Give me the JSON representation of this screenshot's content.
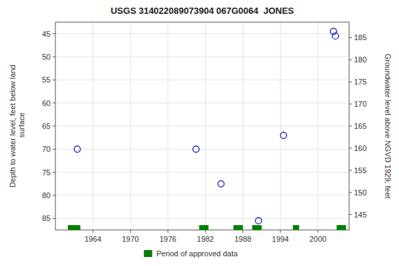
{
  "chart_data": {
    "type": "scatter",
    "title": "USGS 314022089073904 067G0064  JONES",
    "ylabel": "Depth to water level, feet below land\n surface",
    "y2label": "Groundwater level above NGVD 1929, feet",
    "grid": true,
    "legend": "bottom",
    "xlim": [
      1958,
      2005
    ],
    "xticks": [
      1964,
      1970,
      1976,
      1982,
      1988,
      1994,
      2000
    ],
    "ylim": [
      87.5,
      42.5
    ],
    "yticks": [
      45,
      50,
      55,
      60,
      65,
      70,
      75,
      80,
      85
    ],
    "y2lim": [
      141.5,
      188.5
    ],
    "y2ticks": [
      145,
      150,
      155,
      160,
      165,
      170,
      175,
      180,
      185
    ],
    "series": [
      {
        "type": "scatter",
        "marker": "open-circle",
        "color": "#0000cc",
        "x": [
          1961.5,
          1980.5,
          1984.5,
          1990.5,
          1994.5,
          2002.5,
          2002.8
        ],
        "values": [
          70.0,
          70.0,
          77.5,
          85.5,
          67.0,
          44.5,
          45.5
        ]
      },
      {
        "type": "range",
        "name": "Period of approved data",
        "color": "#008000",
        "values": [
          [
            1960.0,
            1962.0
          ],
          [
            1981.0,
            1982.5
          ],
          [
            1986.5,
            1988.0
          ],
          [
            1989.5,
            1991.0
          ],
          [
            1996.0,
            1997.0
          ],
          [
            2003.0,
            2004.5
          ]
        ]
      }
    ]
  }
}
